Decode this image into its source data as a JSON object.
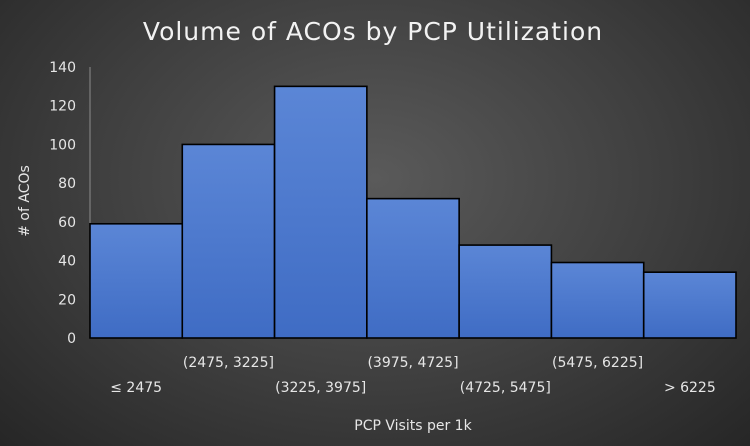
{
  "chart_data": {
    "type": "bar",
    "title": "Volume of ACOs by PCP Utilization",
    "xlabel": "PCP Visits per 1k",
    "ylabel": "# of ACOs",
    "categories": [
      "≤ 2475",
      "(2475, 3225]",
      "(3225, 3975]",
      "(3975, 4725]",
      "(4725, 5475]",
      "(5475, 6225]",
      "> 6225"
    ],
    "values": [
      59,
      100,
      130,
      72,
      48,
      39,
      34
    ],
    "ylim": [
      0,
      140
    ],
    "yticks": [
      0,
      20,
      40,
      60,
      80,
      100,
      120,
      140
    ],
    "grid": false,
    "legend": "none",
    "bar_color": "#4472c4",
    "bar_edge_color": "#000000"
  }
}
